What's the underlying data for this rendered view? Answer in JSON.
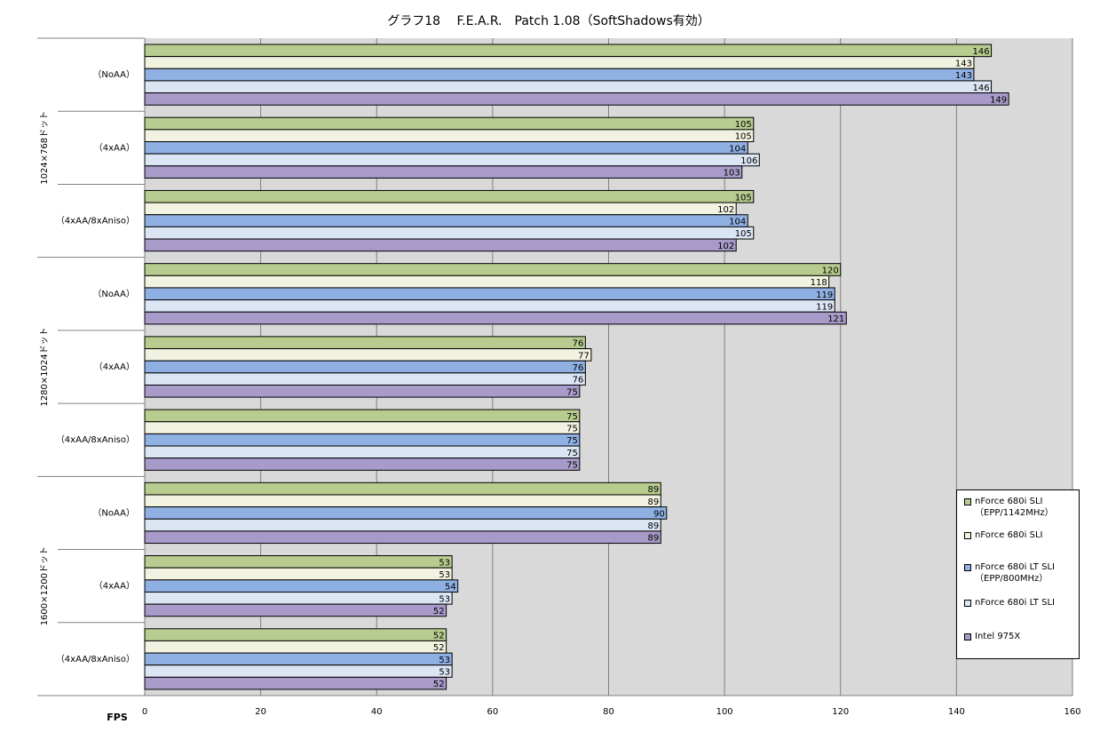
{
  "chart_data": {
    "type": "bar",
    "orientation": "horizontal",
    "title": "グラフ18　 F.E.A.R.　Patch 1.08（SoftShadows有効）",
    "x_label": "FPS",
    "category_groups": [
      "1024×768ドット",
      "1280×1024ドット",
      "1600×1200ドット"
    ],
    "categories": [
      "（NoAA）",
      "（4xAA）",
      "（4xAA/8xAniso）",
      "（NoAA）",
      "（4xAA）",
      "（4xAA/8xAniso）",
      "（NoAA）",
      "（4xAA）",
      "（4xAA/8xAniso）"
    ],
    "series": [
      {
        "name": "nForce 680i SLI\n（EPP/1142MHz）",
        "color": "#b7cc8e",
        "values": [
          146,
          105,
          105,
          120,
          76,
          75,
          89,
          53,
          52
        ]
      },
      {
        "name": "nForce 680i SLI",
        "color": "#f2f2e0",
        "values": [
          143,
          105,
          102,
          118,
          77,
          75,
          89,
          53,
          52
        ]
      },
      {
        "name": "nForce 680i LT SLI\n（EPP/800MHz）",
        "color": "#8fb0e3",
        "values": [
          143,
          104,
          104,
          119,
          76,
          75,
          90,
          54,
          53
        ]
      },
      {
        "name": "nForce 680i LT SLI",
        "color": "#dce5f4",
        "values": [
          146,
          106,
          105,
          119,
          76,
          75,
          89,
          53,
          53
        ]
      },
      {
        "name": "Intel 975X",
        "color": "#a89bc9",
        "values": [
          149,
          103,
          102,
          121,
          75,
          75,
          89,
          52,
          52
        ]
      }
    ],
    "xlim": [
      0,
      160
    ],
    "xticks": [
      0,
      20,
      40,
      60,
      80,
      100,
      120,
      140,
      160
    ],
    "grid": true
  }
}
